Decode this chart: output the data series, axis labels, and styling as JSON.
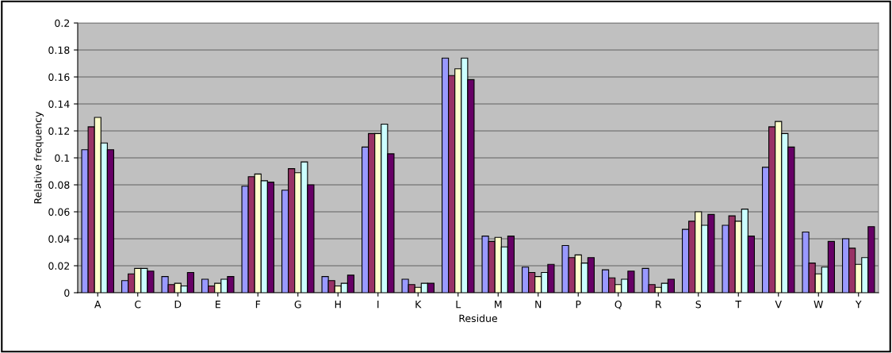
{
  "chart_data": {
    "type": "bar",
    "xlabel": "Residue",
    "ylabel": "Relative frequency",
    "categories": [
      "A",
      "C",
      "D",
      "E",
      "F",
      "G",
      "H",
      "I",
      "K",
      "L",
      "M",
      "N",
      "P",
      "Q",
      "R",
      "S",
      "T",
      "V",
      "W",
      "Y"
    ],
    "series": [
      {
        "color": "#9999ff",
        "values": [
          0.106,
          0.009,
          0.012,
          0.01,
          0.079,
          0.076,
          0.012,
          0.108,
          0.01,
          0.174,
          0.042,
          0.019,
          0.035,
          0.017,
          0.018,
          0.047,
          0.05,
          0.093,
          0.045,
          0.04
        ]
      },
      {
        "color": "#993366",
        "values": [
          0.123,
          0.014,
          0.006,
          0.005,
          0.086,
          0.092,
          0.009,
          0.118,
          0.006,
          0.161,
          0.038,
          0.015,
          0.026,
          0.011,
          0.006,
          0.053,
          0.057,
          0.123,
          0.022,
          0.033
        ]
      },
      {
        "color": "#ffffcc",
        "values": [
          0.13,
          0.018,
          0.007,
          0.007,
          0.088,
          0.089,
          0.005,
          0.118,
          0.004,
          0.166,
          0.041,
          0.012,
          0.028,
          0.006,
          0.004,
          0.06,
          0.053,
          0.127,
          0.014,
          0.021
        ]
      },
      {
        "color": "#ccffff",
        "values": [
          0.111,
          0.018,
          0.005,
          0.01,
          0.083,
          0.097,
          0.007,
          0.125,
          0.007,
          0.174,
          0.034,
          0.015,
          0.022,
          0.01,
          0.007,
          0.05,
          0.062,
          0.118,
          0.019,
          0.026
        ]
      },
      {
        "color": "#660066",
        "values": [
          0.106,
          0.016,
          0.015,
          0.012,
          0.082,
          0.08,
          0.013,
          0.103,
          0.007,
          0.158,
          0.042,
          0.021,
          0.026,
          0.016,
          0.01,
          0.058,
          0.042,
          0.108,
          0.038,
          0.049
        ]
      }
    ],
    "ylim": [
      0,
      0.2
    ],
    "yticks": [
      0,
      0.02,
      0.04,
      0.06,
      0.08,
      0.1,
      0.12,
      0.14,
      0.16,
      0.18,
      0.2
    ],
    "grid": "y",
    "legend": false
  }
}
